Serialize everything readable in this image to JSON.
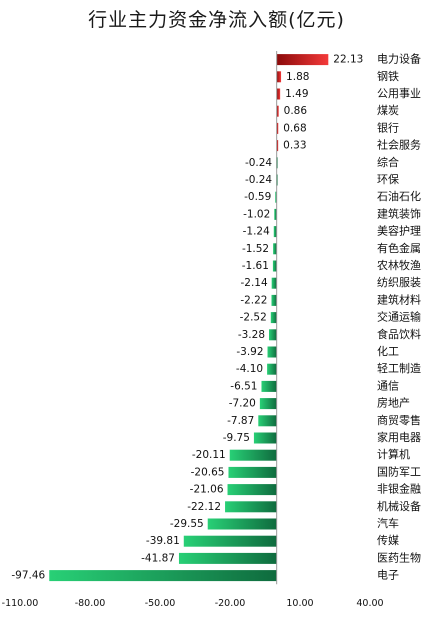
{
  "chart_data": {
    "type": "bar",
    "orientation": "horizontal",
    "title": "行业主力资金净流入额(亿元)",
    "categories": [
      "电力设备",
      "钢铁",
      "公用事业",
      "煤炭",
      "银行",
      "社会服务",
      "综合",
      "环保",
      "石油石化",
      "建筑装饰",
      "美容护理",
      "有色金属",
      "农林牧渔",
      "纺织服装",
      "建筑材料",
      "交通运输",
      "食品饮料",
      "化工",
      "轻工制造",
      "通信",
      "房地产",
      "商贸零售",
      "家用电器",
      "计算机",
      "国防军工",
      "非银金融",
      "机械设备",
      "汽车",
      "传媒",
      "医药生物",
      "电子"
    ],
    "values": [
      22.13,
      1.88,
      1.49,
      0.86,
      0.68,
      0.33,
      -0.24,
      -0.24,
      -0.59,
      -1.02,
      -1.24,
      -1.52,
      -1.61,
      -2.14,
      -2.22,
      -2.52,
      -3.28,
      -3.92,
      -4.1,
      -6.51,
      -7.2,
      -7.87,
      -9.75,
      -20.11,
      -20.65,
      -21.06,
      -22.12,
      -29.55,
      -39.81,
      -41.87,
      -97.46
    ],
    "value_labels": [
      "22.13",
      "1.88",
      "1.49",
      "0.86",
      "0.68",
      "0.33",
      "-0.24",
      "-0.24",
      "-0.59",
      "-1.02",
      "-1.24",
      "-1.52",
      "-1.61",
      "-2.14",
      "-2.22",
      "-2.52",
      "-3.28",
      "-3.92",
      "-4.10",
      "-6.51",
      "-7.20",
      "-7.87",
      "-9.75",
      "-20.11",
      "-20.65",
      "-21.06",
      "-22.12",
      "-29.55",
      "-39.81",
      "-41.87",
      "-97.46"
    ],
    "xlim": [
      -110,
      40
    ],
    "x_ticks": [
      -110,
      -80,
      -50,
      -20,
      10,
      40
    ],
    "x_tick_labels": [
      "-110.00",
      "-80.00",
      "-50.00",
      "-20.00",
      "10.00",
      "40.00"
    ],
    "grid": false,
    "legend": "none",
    "colors": {
      "positive_dark": "#8b0a0a",
      "positive_light": "#f43a3a",
      "negative_light": "#28d076",
      "negative_dark": "#0f6b3e",
      "axis": "#9a9a9a"
    }
  }
}
